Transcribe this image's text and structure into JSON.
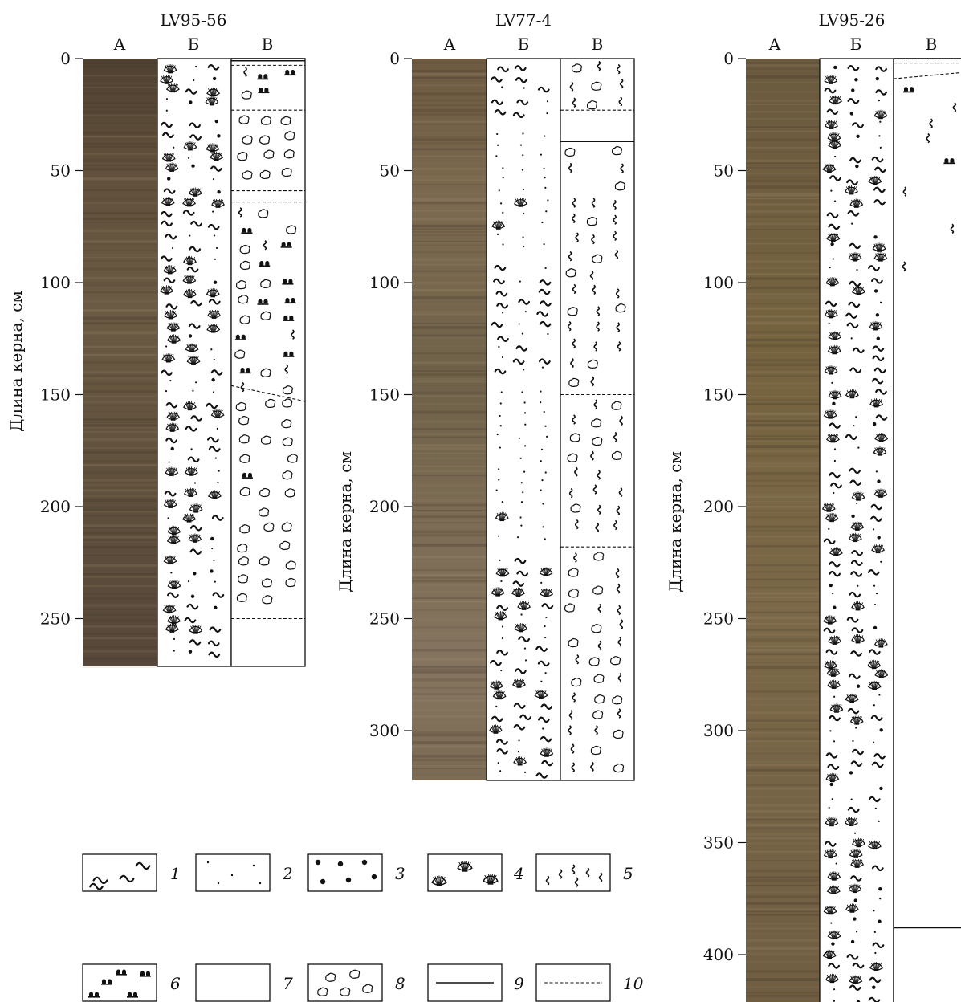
{
  "figure": {
    "y_axis_label": "Длина керна, см",
    "column_labels": [
      "А",
      "Б",
      "В"
    ],
    "cores": [
      {
        "id": "LV95-56",
        "depth_cm": 270,
        "ticks": [
          0,
          50,
          100,
          150,
          200,
          250
        ],
        "show_y_label": true,
        "b_segments": [
          {
            "from": 0,
            "to": 270,
            "patterns": [
              "wave",
              "dots",
              "shell",
              "pebbles"
            ],
            "shell_density": "high"
          }
        ],
        "v_boundaries": [
          {
            "depth": 0,
            "style": "solid"
          },
          {
            "depth": 1,
            "style": "solid"
          },
          {
            "depth": 3,
            "style": "dashed"
          },
          {
            "depth": 23,
            "style": "dashed"
          },
          {
            "depth": 59,
            "style": "dashed"
          },
          {
            "depth": 64,
            "style": "dashed"
          },
          {
            "depth": 250,
            "style": "dashed"
          }
        ],
        "v_oblique": [
          {
            "from": 146,
            "to": 153
          }
        ],
        "v_segments": [
          {
            "from": 0,
            "to": 3,
            "patterns": [
              "worm"
            ]
          },
          {
            "from": 3,
            "to": 23,
            "patterns": [
              "worm",
              "crumb",
              "colony"
            ]
          },
          {
            "from": 23,
            "to": 59,
            "patterns": [
              "crumb"
            ]
          },
          {
            "from": 59,
            "to": 64,
            "patterns": [
              "colony"
            ]
          },
          {
            "from": 64,
            "to": 150,
            "patterns": [
              "crumb",
              "worm",
              "colony"
            ]
          },
          {
            "from": 150,
            "to": 250,
            "patterns": [
              "crumb",
              "colony_sparse"
            ]
          },
          {
            "from": 250,
            "to": 270,
            "patterns": [
              "crumb_sparse"
            ]
          }
        ]
      },
      {
        "id": "LV77-4",
        "depth_cm": 322,
        "ticks": [
          0,
          50,
          100,
          150,
          200,
          250,
          300
        ],
        "show_y_label": true,
        "b_segments": [
          {
            "from": 0,
            "to": 30,
            "patterns": [
              "wave",
              "dots"
            ]
          },
          {
            "from": 30,
            "to": 90,
            "patterns": [
              "dots",
              "shell_sparse"
            ]
          },
          {
            "from": 90,
            "to": 145,
            "patterns": [
              "wave",
              "dots"
            ]
          },
          {
            "from": 145,
            "to": 220,
            "patterns": [
              "dots",
              "shell_sparse"
            ]
          },
          {
            "from": 220,
            "to": 322,
            "patterns": [
              "wave",
              "dots",
              "shell"
            ],
            "shell_density": "high"
          }
        ],
        "v_boundaries": [
          {
            "depth": 0,
            "style": "dashed"
          },
          {
            "depth": 23,
            "style": "dashed"
          },
          {
            "depth": 37,
            "style": "solid"
          },
          {
            "depth": 150,
            "style": "dashed"
          },
          {
            "depth": 218,
            "style": "dashed"
          }
        ],
        "v_oblique": [],
        "v_segments": [
          {
            "from": 0,
            "to": 23,
            "patterns": [
              "worm",
              "crumb"
            ]
          },
          {
            "from": 23,
            "to": 37,
            "patterns": []
          },
          {
            "from": 37,
            "to": 150,
            "patterns": [
              "worm",
              "crumb"
            ]
          },
          {
            "from": 150,
            "to": 218,
            "patterns": [
              "worm",
              "crumb"
            ]
          },
          {
            "from": 218,
            "to": 322,
            "patterns": [
              "worm",
              "crumb"
            ]
          }
        ]
      },
      {
        "id": "LV95-26",
        "depth_cm": 424,
        "ticks": [
          0,
          50,
          100,
          150,
          200,
          250,
          300,
          350,
          400
        ],
        "show_y_label": true,
        "b_segments": [
          {
            "from": 0,
            "to": 424,
            "patterns": [
              "wave",
              "dots",
              "pebbles",
              "shell"
            ],
            "shell_density": "high"
          }
        ],
        "v_boundaries": [
          {
            "depth": 0,
            "style": "solid"
          },
          {
            "depth": 2,
            "style": "dashed"
          },
          {
            "depth": 388,
            "style": "solid"
          }
        ],
        "v_oblique": [
          {
            "from": 9,
            "to": 6
          }
        ],
        "v_segments": [
          {
            "from": 2,
            "to": 9,
            "patterns": [
              "worm"
            ]
          },
          {
            "from": 9,
            "to": 100,
            "patterns": [
              "worm_sparse",
              "colony_sparse"
            ]
          },
          {
            "from": 100,
            "to": 388,
            "patterns": []
          }
        ]
      }
    ],
    "legend": [
      {
        "num": "1",
        "pattern": "wave"
      },
      {
        "num": "2",
        "pattern": "dots"
      },
      {
        "num": "3",
        "pattern": "pebbles"
      },
      {
        "num": "4",
        "pattern": "shell"
      },
      {
        "num": "5",
        "pattern": "worm"
      },
      {
        "num": "6",
        "pattern": "colony"
      },
      {
        "num": "7",
        "pattern": "empty"
      },
      {
        "num": "8",
        "pattern": "crumb"
      },
      {
        "num": "9",
        "pattern": "solid-line"
      },
      {
        "num": "10",
        "pattern": "dashed-line"
      }
    ],
    "colors": {
      "core_photo_1": "#5a4a36",
      "core_photo_2": "#6c5c45",
      "core_photo_3": "#7a6a4f",
      "ink": "#111111"
    }
  }
}
